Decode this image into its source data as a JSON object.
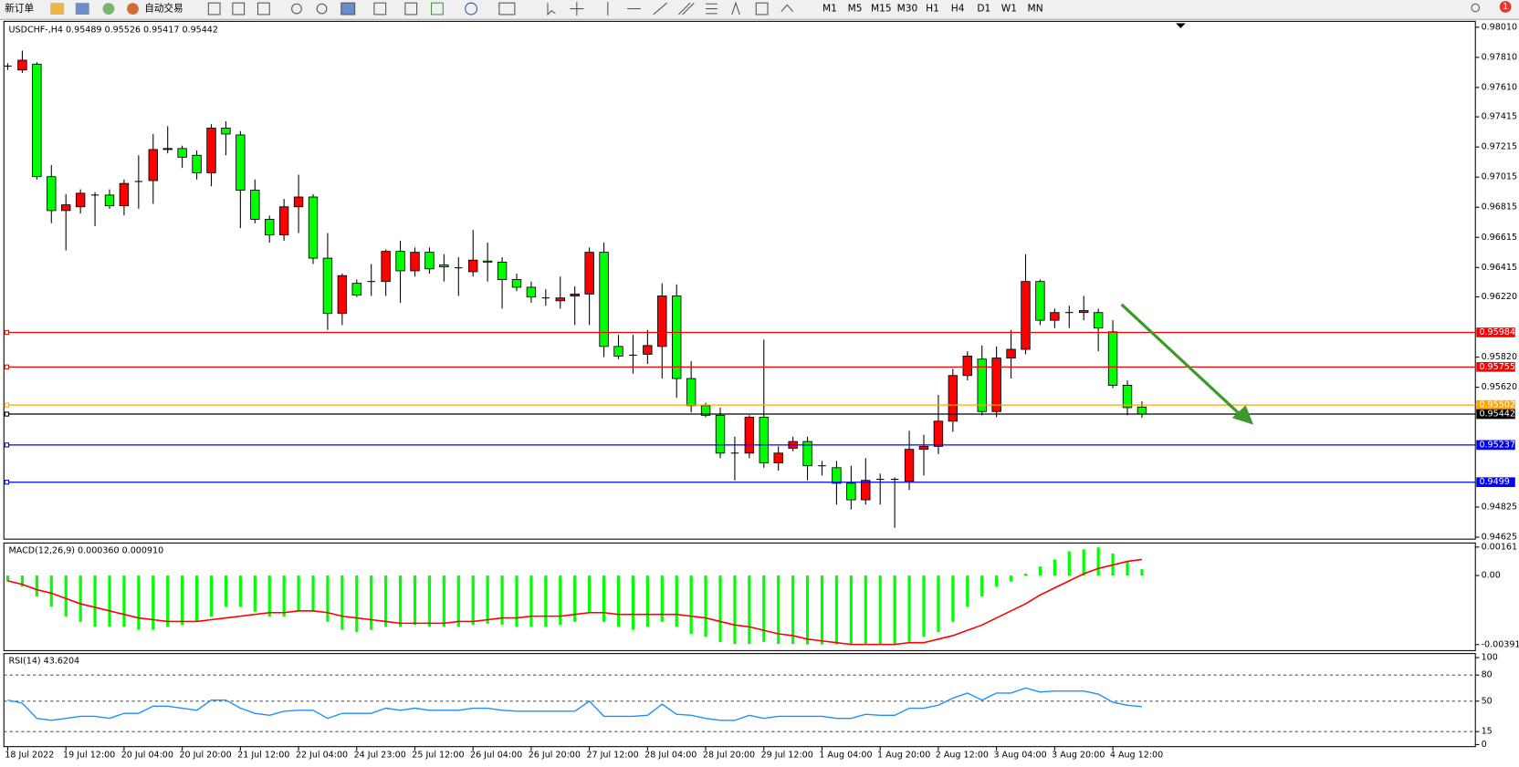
{
  "toolbar": {
    "new_order": "新订单",
    "auto_trading": "自动交易",
    "timeframes": [
      "M1",
      "M5",
      "M15",
      "M30",
      "H1",
      "H4",
      "D1",
      "W1",
      "MN"
    ],
    "notifications": 1
  },
  "chart_data": [
    {
      "type": "candlestick",
      "title": "USDCHF-,H4 0.95489 0.95526 0.95417 0.95442",
      "up_color": "#ff0000",
      "down_color": "#00ff00",
      "grid": false,
      "categories": [
        "18 Jul 2022",
        null,
        null,
        null,
        "19 Jul 12:00",
        null,
        null,
        null,
        "20 Jul 04:00",
        null,
        null,
        null,
        "20 Jul 20:00",
        null,
        null,
        null,
        "21 Jul 12:00",
        null,
        null,
        null,
        "22 Jul 04:00",
        null,
        null,
        null,
        "24 Jul 23:00",
        null,
        null,
        null,
        "25 Jul 12:00",
        null,
        null,
        null,
        "26 Jul 04:00",
        null,
        null,
        null,
        "26 Jul 20:00",
        null,
        null,
        null,
        "27 Jul 12:00",
        null,
        null,
        null,
        "28 Jul 04:00",
        null,
        null,
        null,
        "28 Jul 20:00",
        null,
        null,
        null,
        "29 Jul 12:00",
        null,
        null,
        null,
        "1 Aug 04:00",
        null,
        null,
        null,
        "1 Aug 20:00",
        null,
        null,
        null,
        "2 Aug 12:00",
        null,
        null,
        null,
        "3 Aug 04:00",
        null,
        null,
        null,
        "3 Aug 20:00",
        null,
        null,
        null,
        "4 Aug 12:00",
        null,
        null
      ],
      "open": [
        0.97752,
        0.97726,
        0.97765,
        0.97018,
        0.96793,
        0.96818,
        0.96896,
        0.96896,
        0.96825,
        0.96986,
        0.96992,
        0.97198,
        0.97205,
        0.9716,
        0.97044,
        0.9734,
        0.97295,
        0.96928,
        0.96735,
        0.96632,
        0.96818,
        0.96883,
        0.96477,
        0.9611,
        0.9631,
        0.96322,
        0.96322,
        0.96522,
        0.96393,
        0.96516,
        0.96432,
        0.96413,
        0.96387,
        0.96458,
        0.96451,
        0.96335,
        0.96284,
        0.96213,
        0.96194,
        0.96226,
        0.96239,
        0.96516,
        0.95891,
        0.95833,
        0.95839,
        0.95891,
        0.96226,
        0.95678,
        0.95498,
        0.95434,
        0.95183,
        0.95183,
        0.95421,
        0.95118,
        0.95215,
        0.9526,
        0.95099,
        0.95086,
        0.94983,
        0.94873,
        0.95009,
        0.95009,
        0.94996,
        0.95208,
        0.95228,
        0.95395,
        0.95698,
        0.95807,
        0.95459,
        0.95814,
        0.95872,
        0.96322,
        0.96065,
        0.96116,
        0.96116,
        0.96116,
        0.95988,
        0.95633,
        0.95489
      ],
      "high": [
        0.97771,
        0.97855,
        0.97778,
        0.97095,
        0.96902,
        0.96934,
        0.96915,
        0.96934,
        0.96999,
        0.9716,
        0.97301,
        0.97353,
        0.97224,
        0.97192,
        0.97366,
        0.97385,
        0.97321,
        0.96999,
        0.9676,
        0.9687,
        0.97031,
        0.96902,
        0.96644,
        0.96374,
        0.96335,
        0.96438,
        0.96535,
        0.96593,
        0.96548,
        0.96548,
        0.96503,
        0.96483,
        0.96664,
        0.9658,
        0.96483,
        0.96374,
        0.96322,
        0.96271,
        0.96355,
        0.9629,
        0.96548,
        0.9658,
        0.95968,
        0.95968,
        0.96,
        0.9631,
        0.96303,
        0.95794,
        0.95517,
        0.95485,
        0.95292,
        0.95434,
        0.95936,
        0.95228,
        0.95292,
        0.95292,
        0.95131,
        0.95131,
        0.95099,
        0.9515,
        0.95047,
        0.95022,
        0.95331,
        0.95305,
        0.95569,
        0.95743,
        0.95859,
        0.95897,
        0.95891,
        0.96,
        0.96503,
        0.96335,
        0.96142,
        0.96161,
        0.96226,
        0.96142,
        0.96065,
        0.95666,
        0.95526
      ],
      "low": [
        0.97726,
        0.97707,
        0.96999,
        0.96709,
        0.96528,
        0.96773,
        0.96689,
        0.96805,
        0.9676,
        0.96805,
        0.96838,
        0.97172,
        0.97076,
        0.96999,
        0.96954,
        0.9716,
        0.96677,
        0.96709,
        0.9658,
        0.96593,
        0.96644,
        0.96438,
        0.96,
        0.96033,
        0.96219,
        0.96226,
        0.96226,
        0.96181,
        0.96355,
        0.96374,
        0.96322,
        0.96226,
        0.96355,
        0.96322,
        0.96142,
        0.96258,
        0.96181,
        0.96161,
        0.96142,
        0.96033,
        0.96033,
        0.9582,
        0.95807,
        0.95711,
        0.95775,
        0.95678,
        0.9555,
        0.95453,
        0.95421,
        0.9515,
        0.95002,
        0.9515,
        0.95086,
        0.95067,
        0.95195,
        0.95002,
        0.95034,
        0.94841,
        0.94809,
        0.94841,
        0.94841,
        0.94687,
        0.94938,
        0.95034,
        0.95176,
        0.95324,
        0.95666,
        0.95434,
        0.95421,
        0.95678,
        0.95839,
        0.96033,
        0.96013,
        0.96013,
        0.96065,
        0.95859,
        0.95614,
        0.95434,
        0.95417
      ],
      "close": [
        0.97752,
        0.97791,
        0.97018,
        0.96793,
        0.96831,
        0.96908,
        0.96896,
        0.96825,
        0.96973,
        0.96986,
        0.97198,
        0.97205,
        0.97147,
        0.97044,
        0.9734,
        0.97301,
        0.96928,
        0.96735,
        0.96632,
        0.96818,
        0.96883,
        0.96477,
        0.9611,
        0.96361,
        0.96232,
        0.96322,
        0.96522,
        0.96393,
        0.96516,
        0.96406,
        0.96419,
        0.96413,
        0.96464,
        0.96451,
        0.96335,
        0.96284,
        0.96219,
        0.96213,
        0.96213,
        0.96239,
        0.96516,
        0.95891,
        0.95827,
        0.95833,
        0.95897,
        0.96226,
        0.95678,
        0.95498,
        0.95434,
        0.95183,
        0.95183,
        0.95421,
        0.95118,
        0.95183,
        0.9526,
        0.95099,
        0.95099,
        0.94983,
        0.94873,
        0.95002,
        0.95009,
        0.95009,
        0.95208,
        0.95228,
        0.95395,
        0.95698,
        0.95827,
        0.95459,
        0.95814,
        0.95872,
        0.96322,
        0.96065,
        0.96116,
        0.96116,
        0.96129,
        0.96013,
        0.95633,
        0.95485,
        0.95442
      ],
      "levels": [
        {
          "value": 0.95984,
          "color": "#ff0000"
        },
        {
          "value": 0.95755,
          "color": "#ff0000"
        },
        {
          "value": 0.95502,
          "color": "#ffa500"
        },
        {
          "value": 0.95442,
          "color": "#000000"
        },
        {
          "value": 0.95237,
          "color": "#0000ff"
        },
        {
          "value": 0.9499,
          "color": "#0000ff"
        }
      ],
      "ylim": [
        0.94612,
        0.98049
      ],
      "yticks": [
        {
          "value": 0.9801,
          "label": "0.98010"
        },
        {
          "value": 0.9781,
          "label": "0.97810"
        },
        {
          "value": 0.9761,
          "label": "0.97610"
        },
        {
          "value": 0.97415,
          "label": "0.97415"
        },
        {
          "value": 0.97215,
          "label": "0.97215"
        },
        {
          "value": 0.97015,
          "label": "0.97015"
        },
        {
          "value": 0.96815,
          "label": "0.96815"
        },
        {
          "value": 0.96615,
          "label": "0.96615"
        },
        {
          "value": 0.96415,
          "label": "0.96415"
        },
        {
          "value": 0.9622,
          "label": "0.96220"
        },
        {
          "value": 0.9582,
          "label": "0.95820"
        },
        {
          "value": 0.9562,
          "label": "0.95620"
        },
        {
          "value": 0.94825,
          "label": "0.94825"
        },
        {
          "value": 0.94625,
          "label": "0.94625"
        }
      ]
    },
    {
      "type": "macd",
      "title": "MACD(12,26,9) 0.000360 0.000910",
      "grid": false,
      "histogram": {
        "color": "#00ff00",
        "values": [
          -0.00034,
          -0.00063,
          -0.00119,
          -0.00176,
          -0.00233,
          -0.00262,
          -0.0029,
          -0.0029,
          -0.0029,
          -0.00307,
          -0.00307,
          -0.0029,
          -0.00279,
          -0.00262,
          -0.00233,
          -0.00176,
          -0.00176,
          -0.00205,
          -0.00233,
          -0.00233,
          -0.00205,
          -0.00205,
          -0.00262,
          -0.00307,
          -0.00319,
          -0.00307,
          -0.0029,
          -0.0029,
          -0.00279,
          -0.0029,
          -0.0029,
          -0.0029,
          -0.00279,
          -0.00273,
          -0.00279,
          -0.0029,
          -0.0029,
          -0.0029,
          -0.00279,
          -0.00262,
          -0.00205,
          -0.00262,
          -0.0029,
          -0.00307,
          -0.0029,
          -0.00262,
          -0.0029,
          -0.0033,
          -0.00347,
          -0.00376,
          -0.00387,
          -0.00387,
          -0.00376,
          -0.00387,
          -0.00387,
          -0.0039,
          -0.0039,
          -0.0039,
          -0.0039,
          -0.0039,
          -0.0039,
          -0.00387,
          -0.00376,
          -0.00347,
          -0.00319,
          -0.00262,
          -0.00176,
          -0.00119,
          -0.00063,
          -0.00034,
          0.00011,
          0.00051,
          0.00091,
          0.00137,
          0.00148,
          0.00159,
          0.00125,
          0.0008,
          0.00036
        ]
      },
      "signal": {
        "color": "#ff0000",
        "values": [
          -0.0003,
          -0.0005,
          -0.0008,
          -0.001,
          -0.0013,
          -0.0016,
          -0.0018,
          -0.002,
          -0.0022,
          -0.0024,
          -0.0025,
          -0.0026,
          -0.0026,
          -0.0026,
          -0.0025,
          -0.0024,
          -0.0023,
          -0.0022,
          -0.0021,
          -0.0021,
          -0.002,
          -0.002,
          -0.0021,
          -0.0023,
          -0.0024,
          -0.0025,
          -0.0026,
          -0.0027,
          -0.0027,
          -0.0027,
          -0.0027,
          -0.0026,
          -0.0026,
          -0.0025,
          -0.0024,
          -0.0024,
          -0.0023,
          -0.0023,
          -0.0023,
          -0.0022,
          -0.0021,
          -0.0021,
          -0.0022,
          -0.0022,
          -0.0022,
          -0.0022,
          -0.0022,
          -0.0023,
          -0.0024,
          -0.0026,
          -0.0028,
          -0.0029,
          -0.0031,
          -0.0033,
          -0.0034,
          -0.0036,
          -0.0037,
          -0.0038,
          -0.0039,
          -0.0039,
          -0.0039,
          -0.0039,
          -0.0038,
          -0.0038,
          -0.0036,
          -0.0034,
          -0.0031,
          -0.0028,
          -0.0024,
          -0.002,
          -0.0016,
          -0.0011,
          -0.0007,
          -0.0003,
          0.0001,
          0.0004,
          0.0006,
          0.0008,
          0.00091
        ]
      },
      "ylim": [
        -0.00425,
        0.00184
      ],
      "yticks": [
        0.00161,
        {
          "value": 0,
          "label": "0.00"
        },
        -0.00391
      ]
    },
    {
      "type": "rsi",
      "title": "RSI(14) 43.6204",
      "color": "#1e90ff",
      "level_lines": true,
      "values": [
        51.2,
        47.7,
        30.2,
        27.9,
        30.2,
        32.6,
        32.6,
        30.2,
        36.0,
        36.0,
        44.2,
        44.2,
        41.9,
        39.5,
        51.2,
        51.2,
        41.9,
        36.0,
        33.7,
        38.4,
        39.5,
        39.5,
        30.2,
        36.0,
        36.0,
        36.0,
        41.9,
        39.5,
        41.9,
        39.5,
        39.5,
        39.5,
        41.9,
        41.9,
        39.5,
        38.4,
        38.4,
        38.4,
        38.4,
        38.4,
        50.0,
        32.6,
        32.6,
        32.6,
        33.7,
        46.5,
        34.9,
        33.7,
        30.2,
        27.9,
        27.9,
        33.7,
        30.2,
        32.6,
        32.6,
        32.6,
        32.6,
        30.2,
        30.2,
        34.9,
        33.7,
        33.7,
        41.9,
        41.9,
        45.3,
        53.5,
        59.3,
        51.2,
        59.3,
        59.3,
        65.1,
        60.5,
        61.6,
        61.6,
        61.6,
        58.1,
        48.8,
        45.3,
        43.6204
      ],
      "ylim": [
        -2.3,
        104.7
      ],
      "yticks": [
        100,
        80,
        50,
        15,
        0
      ]
    }
  ]
}
